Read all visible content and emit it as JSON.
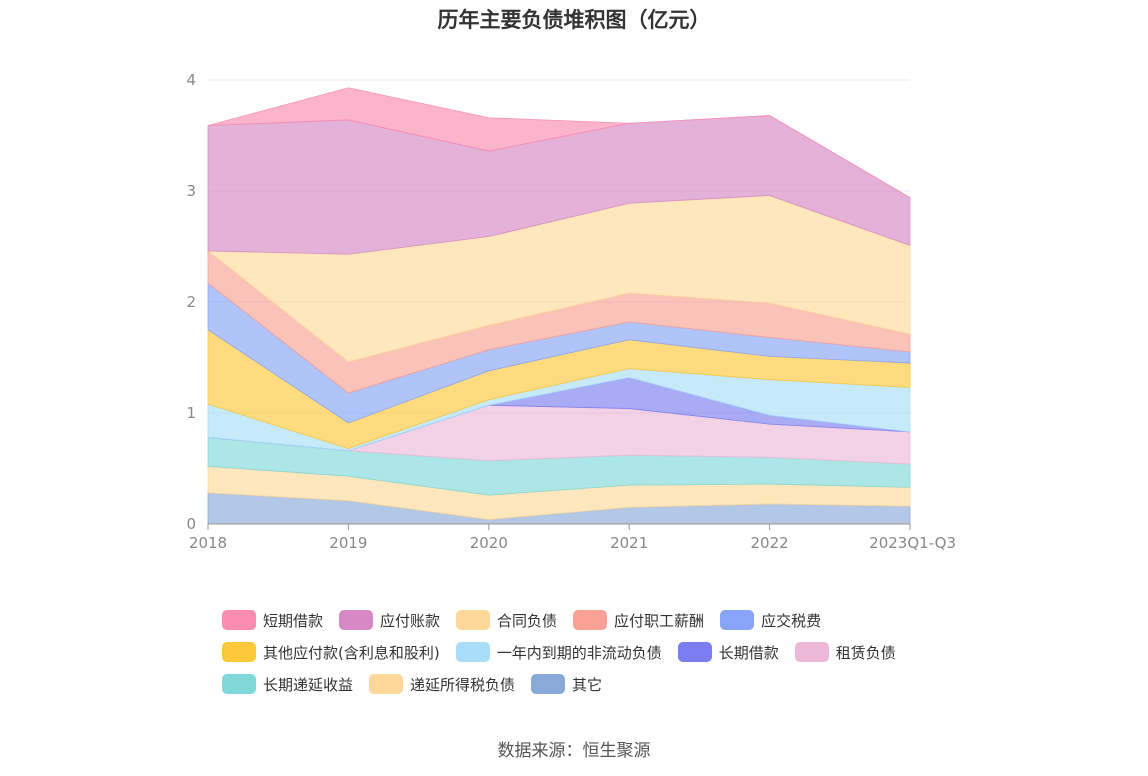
{
  "chart_data": {
    "type": "area",
    "stacked": true,
    "title": "历年主要负债堆积图（亿元）",
    "categories": [
      "2018",
      "2019",
      "2020",
      "2021",
      "2022",
      "2023Q1-Q3"
    ],
    "ylim": [
      0,
      4
    ],
    "yticks": [
      "0",
      "1",
      "2",
      "3",
      "4"
    ],
    "grid": true,
    "legend_position": "bottom",
    "source": "数据来源：恒生聚源",
    "series": [
      {
        "name": "其它",
        "color": "#8aa9d8",
        "values": [
          0.28,
          0.21,
          0.04,
          0.15,
          0.18,
          0.16
        ]
      },
      {
        "name": "递延所得税负债",
        "color": "#fed89a",
        "values": [
          0.24,
          0.22,
          0.22,
          0.2,
          0.18,
          0.17
        ]
      },
      {
        "name": "长期递延收益",
        "color": "#80d8d8",
        "values": [
          0.26,
          0.23,
          0.31,
          0.27,
          0.24,
          0.21
        ]
      },
      {
        "name": "租赁负债",
        "color": "#ecb8d8",
        "values": [
          0.0,
          0.0,
          0.5,
          0.42,
          0.3,
          0.29
        ]
      },
      {
        "name": "长期借款",
        "color": "#7b7ef0",
        "values": [
          0.0,
          0.0,
          0.0,
          0.28,
          0.08,
          0.0
        ]
      },
      {
        "name": "一年内到期的非流动负债",
        "color": "#a8def8",
        "values": [
          0.3,
          0.02,
          0.05,
          0.08,
          0.32,
          0.4
        ]
      },
      {
        "name": "其他应付款(含利息和股利)",
        "color": "#fdc83a",
        "values": [
          0.67,
          0.23,
          0.26,
          0.26,
          0.21,
          0.22
        ]
      },
      {
        "name": "应交税费",
        "color": "#87a4f8",
        "values": [
          0.42,
          0.27,
          0.19,
          0.16,
          0.17,
          0.1
        ]
      },
      {
        "name": "应付职工薪酬",
        "color": "#f9a194",
        "values": [
          0.29,
          0.28,
          0.22,
          0.26,
          0.31,
          0.16
        ]
      },
      {
        "name": "合同负债",
        "color": "#fed89a",
        "values": [
          0.0,
          0.97,
          0.8,
          0.81,
          0.97,
          0.8
        ]
      },
      {
        "name": "应付账款",
        "color": "#d689c4",
        "values": [
          1.13,
          1.21,
          0.77,
          0.72,
          0.72,
          0.43
        ]
      },
      {
        "name": "短期借款",
        "color": "#f98cb0",
        "values": [
          0.0,
          0.29,
          0.3,
          0.0,
          0.0,
          0.0
        ]
      }
    ]
  },
  "legend": {
    "rows": [
      [
        {
          "name": "短期借款",
          "color": "#f98cb0"
        },
        {
          "name": "应付账款",
          "color": "#d689c4"
        },
        {
          "name": "合同负债",
          "color": "#fed89a"
        },
        {
          "name": "应付职工薪酬",
          "color": "#f9a194"
        },
        {
          "name": "应交税费",
          "color": "#87a4f8"
        }
      ],
      [
        {
          "name": "其他应付款(含利息和股利)",
          "color": "#fdc83a"
        },
        {
          "name": "一年内到期的非流动负债",
          "color": "#a8def8"
        },
        {
          "name": "长期借款",
          "color": "#7b7ef0"
        },
        {
          "name": "租赁负债",
          "color": "#ecb8d8"
        }
      ],
      [
        {
          "name": "长期递延收益",
          "color": "#80d8d8"
        },
        {
          "name": "递延所得税负债",
          "color": "#fed89a"
        },
        {
          "name": "其它",
          "color": "#8aa9d8"
        }
      ]
    ]
  }
}
